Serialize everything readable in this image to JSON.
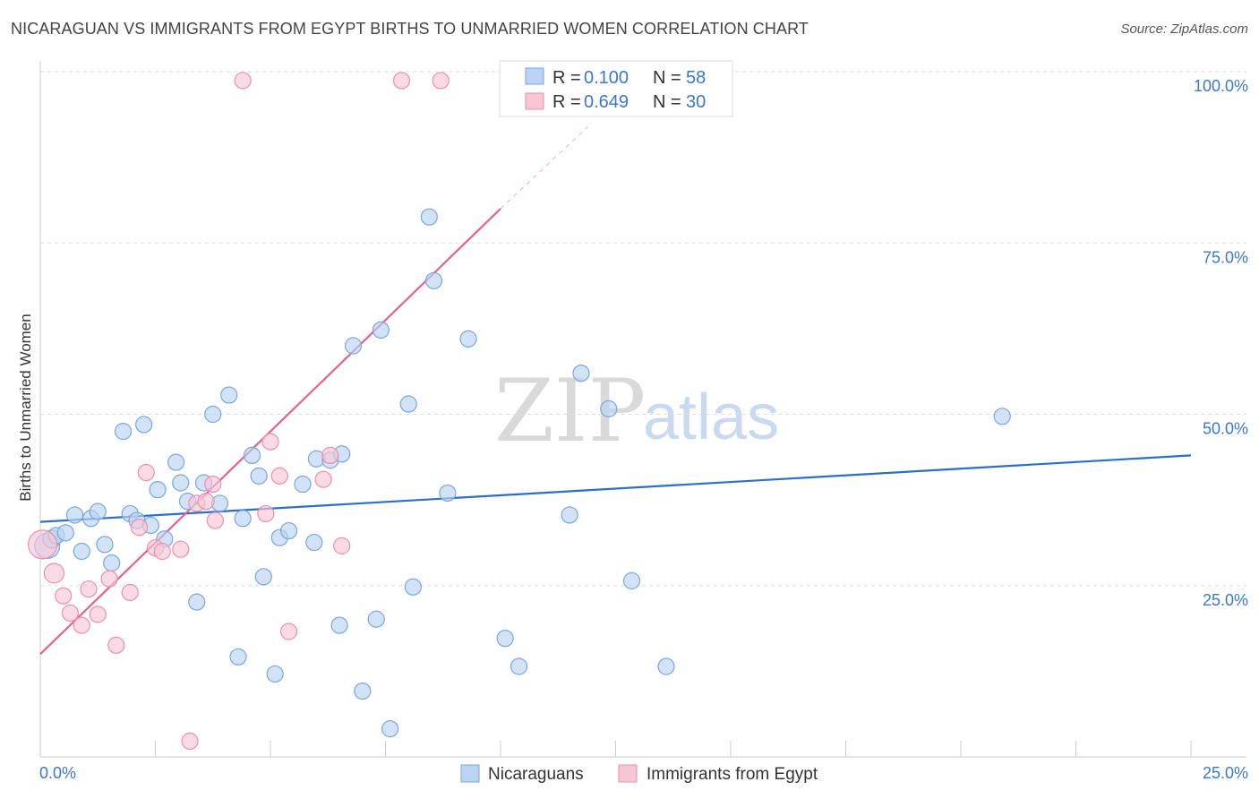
{
  "header": {
    "title": "NICARAGUAN VS IMMIGRANTS FROM EGYPT BIRTHS TO UNMARRIED WOMEN CORRELATION CHART",
    "source": "Source: ZipAtlas.com"
  },
  "watermark": {
    "zip": "ZIP",
    "atlas": "atlas"
  },
  "colors": {
    "blue_fill": "#bcd4f3",
    "blue_stroke": "#7aa6dc",
    "blue_line": "#2a6fca",
    "pink_fill": "#f7c6d5",
    "pink_stroke": "#ec8fae",
    "pink_line": "#e4608f",
    "tick_text": "#3a78c9",
    "grid": "#dddddd"
  },
  "legend": {
    "r_label": "R =",
    "n_label": "N =",
    "series": [
      {
        "name": "Nicaraguans",
        "r": "0.100",
        "n": "58"
      },
      {
        "name": "Immigrants from Egypt",
        "r": "0.649",
        "n": "30"
      }
    ]
  },
  "chart_data": {
    "type": "scatter",
    "title": "NICARAGUAN VS IMMIGRANTS FROM EGYPT BIRTHS TO UNMARRIED WOMEN CORRELATION CHART",
    "xlabel": "",
    "ylabel": "Births to Unmarried Women",
    "xlim": [
      0,
      25
    ],
    "ylim": [
      0,
      100
    ],
    "x_tick_labels": [
      "0.0%",
      "25.0%"
    ],
    "y_tick_labels": [
      "25.0%",
      "50.0%",
      "75.0%",
      "100.0%"
    ],
    "y_ticks": [
      25,
      50,
      75,
      100
    ],
    "series": [
      {
        "name": "Nicaraguans",
        "r": 0.1,
        "n": 58,
        "trend": {
          "x": [
            0,
            25
          ],
          "y": [
            34.3,
            44.0
          ]
        },
        "points": [
          {
            "x": 0.15,
            "y": 30.8,
            "s": 14
          },
          {
            "x": 0.25,
            "y": 31.8,
            "s": 10
          },
          {
            "x": 0.35,
            "y": 32.3,
            "s": 9
          },
          {
            "x": 0.55,
            "y": 32.7,
            "s": 9
          },
          {
            "x": 0.75,
            "y": 35.3,
            "s": 9
          },
          {
            "x": 0.9,
            "y": 30.0,
            "s": 9
          },
          {
            "x": 1.1,
            "y": 34.8,
            "s": 9
          },
          {
            "x": 1.25,
            "y": 35.8,
            "s": 9
          },
          {
            "x": 1.4,
            "y": 31.0,
            "s": 9
          },
          {
            "x": 1.55,
            "y": 28.3,
            "s": 9
          },
          {
            "x": 1.8,
            "y": 47.5,
            "s": 9
          },
          {
            "x": 1.95,
            "y": 35.5,
            "s": 9
          },
          {
            "x": 2.1,
            "y": 34.5,
            "s": 9
          },
          {
            "x": 2.25,
            "y": 48.5,
            "s": 9
          },
          {
            "x": 2.4,
            "y": 33.8,
            "s": 9
          },
          {
            "x": 2.55,
            "y": 39.0,
            "s": 9
          },
          {
            "x": 2.7,
            "y": 31.8,
            "s": 9
          },
          {
            "x": 2.95,
            "y": 43.0,
            "s": 9
          },
          {
            "x": 3.05,
            "y": 40.0,
            "s": 9
          },
          {
            "x": 3.2,
            "y": 37.3,
            "s": 9
          },
          {
            "x": 3.4,
            "y": 22.6,
            "s": 9
          },
          {
            "x": 3.55,
            "y": 40.0,
            "s": 9
          },
          {
            "x": 3.75,
            "y": 50.0,
            "s": 9
          },
          {
            "x": 3.9,
            "y": 37.0,
            "s": 9
          },
          {
            "x": 4.1,
            "y": 52.8,
            "s": 9
          },
          {
            "x": 4.3,
            "y": 14.6,
            "s": 9
          },
          {
            "x": 4.4,
            "y": 34.8,
            "s": 9
          },
          {
            "x": 4.6,
            "y": 44.0,
            "s": 9
          },
          {
            "x": 4.75,
            "y": 41.0,
            "s": 9
          },
          {
            "x": 4.85,
            "y": 26.3,
            "s": 9
          },
          {
            "x": 5.1,
            "y": 12.1,
            "s": 9
          },
          {
            "x": 5.2,
            "y": 32.0,
            "s": 9
          },
          {
            "x": 5.4,
            "y": 33.0,
            "s": 9
          },
          {
            "x": 5.7,
            "y": 39.8,
            "s": 9
          },
          {
            "x": 5.95,
            "y": 31.3,
            "s": 9
          },
          {
            "x": 6.0,
            "y": 43.5,
            "s": 9
          },
          {
            "x": 6.3,
            "y": 43.3,
            "s": 9
          },
          {
            "x": 6.55,
            "y": 44.2,
            "s": 9
          },
          {
            "x": 6.5,
            "y": 19.2,
            "s": 9
          },
          {
            "x": 6.8,
            "y": 60.0,
            "s": 9
          },
          {
            "x": 7.0,
            "y": 9.6,
            "s": 9
          },
          {
            "x": 7.3,
            "y": 20.1,
            "s": 9
          },
          {
            "x": 7.4,
            "y": 62.3,
            "s": 9
          },
          {
            "x": 7.6,
            "y": 4.1,
            "s": 9
          },
          {
            "x": 8.0,
            "y": 51.5,
            "s": 9
          },
          {
            "x": 8.1,
            "y": 24.8,
            "s": 9
          },
          {
            "x": 8.45,
            "y": 78.8,
            "s": 9
          },
          {
            "x": 8.55,
            "y": 69.5,
            "s": 9
          },
          {
            "x": 8.85,
            "y": 38.5,
            "s": 9
          },
          {
            "x": 9.3,
            "y": 61.0,
            "s": 9
          },
          {
            "x": 10.1,
            "y": 17.3,
            "s": 9
          },
          {
            "x": 10.4,
            "y": 13.2,
            "s": 9
          },
          {
            "x": 11.5,
            "y": 35.3,
            "s": 9
          },
          {
            "x": 11.75,
            "y": 56.0,
            "s": 9
          },
          {
            "x": 12.35,
            "y": 50.8,
            "s": 9
          },
          {
            "x": 12.85,
            "y": 25.7,
            "s": 9
          },
          {
            "x": 13.6,
            "y": 13.2,
            "s": 9
          },
          {
            "x": 20.9,
            "y": 49.7,
            "s": 9
          }
        ]
      },
      {
        "name": "Immigrants from Egypt",
        "r": 0.649,
        "n": 30,
        "trend": {
          "x": [
            0,
            10
          ],
          "y": [
            15.0,
            80.0
          ]
        },
        "trend_dashed": {
          "x": [
            10,
            11.9
          ],
          "y": [
            80.0,
            92.0
          ]
        },
        "points": [
          {
            "x": 0.05,
            "y": 31.0,
            "s": 16
          },
          {
            "x": 0.3,
            "y": 26.8,
            "s": 11
          },
          {
            "x": 0.5,
            "y": 23.5,
            "s": 9
          },
          {
            "x": 0.65,
            "y": 21.0,
            "s": 9
          },
          {
            "x": 0.9,
            "y": 19.2,
            "s": 9
          },
          {
            "x": 1.05,
            "y": 24.5,
            "s": 9
          },
          {
            "x": 1.25,
            "y": 20.8,
            "s": 9
          },
          {
            "x": 1.5,
            "y": 26.0,
            "s": 9
          },
          {
            "x": 1.65,
            "y": 16.3,
            "s": 9
          },
          {
            "x": 1.95,
            "y": 24.0,
            "s": 9
          },
          {
            "x": 2.15,
            "y": 33.5,
            "s": 9
          },
          {
            "x": 2.3,
            "y": 41.5,
            "s": 9
          },
          {
            "x": 2.5,
            "y": 30.5,
            "s": 9
          },
          {
            "x": 2.65,
            "y": 30.0,
            "s": 9
          },
          {
            "x": 3.05,
            "y": 30.3,
            "s": 9
          },
          {
            "x": 3.25,
            "y": 2.3,
            "s": 9
          },
          {
            "x": 3.4,
            "y": 37.0,
            "s": 9
          },
          {
            "x": 3.6,
            "y": 37.3,
            "s": 9
          },
          {
            "x": 3.75,
            "y": 39.8,
            "s": 9
          },
          {
            "x": 3.8,
            "y": 34.5,
            "s": 9
          },
          {
            "x": 4.4,
            "y": 98.7,
            "s": 9
          },
          {
            "x": 4.9,
            "y": 35.5,
            "s": 9
          },
          {
            "x": 5.0,
            "y": 46.0,
            "s": 9
          },
          {
            "x": 5.2,
            "y": 41.0,
            "s": 9
          },
          {
            "x": 5.4,
            "y": 18.3,
            "s": 9
          },
          {
            "x": 6.15,
            "y": 40.5,
            "s": 9
          },
          {
            "x": 6.3,
            "y": 44.0,
            "s": 9
          },
          {
            "x": 6.55,
            "y": 30.8,
            "s": 9
          },
          {
            "x": 7.85,
            "y": 98.7,
            "s": 9
          },
          {
            "x": 8.7,
            "y": 98.7,
            "s": 9
          }
        ]
      }
    ]
  }
}
